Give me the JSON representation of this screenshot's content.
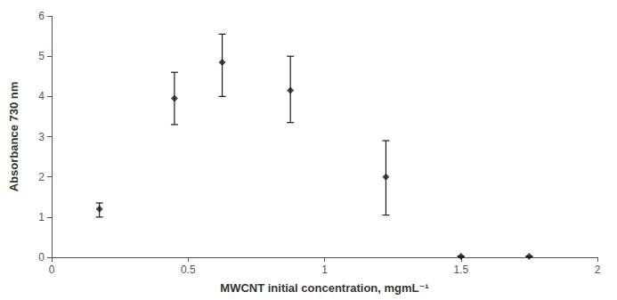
{
  "chart_data": {
    "type": "scatter",
    "xlabel": "MWCNT initial concentration, mgmL⁻¹",
    "ylabel": "Absorbance 730 nm",
    "x": [
      0.175,
      0.45,
      0.625,
      0.875,
      1.225,
      1.5,
      1.75
    ],
    "values": [
      1.2,
      3.95,
      4.85,
      4.15,
      2.0,
      0.02,
      0.02
    ],
    "yerr_lower": [
      0.2,
      0.65,
      0.85,
      0.8,
      0.95,
      0.0,
      0.0
    ],
    "yerr_upper": [
      0.15,
      0.65,
      0.7,
      0.85,
      0.9,
      0.0,
      0.0
    ],
    "xlim": [
      0,
      2
    ],
    "ylim": [
      0,
      6
    ],
    "xticks": [
      0,
      0.5,
      1,
      1.5,
      2
    ],
    "yticks": [
      0,
      1,
      2,
      3,
      4,
      5,
      6
    ],
    "marker": "diamond",
    "color": "#1a1a1a",
    "grid": false
  }
}
